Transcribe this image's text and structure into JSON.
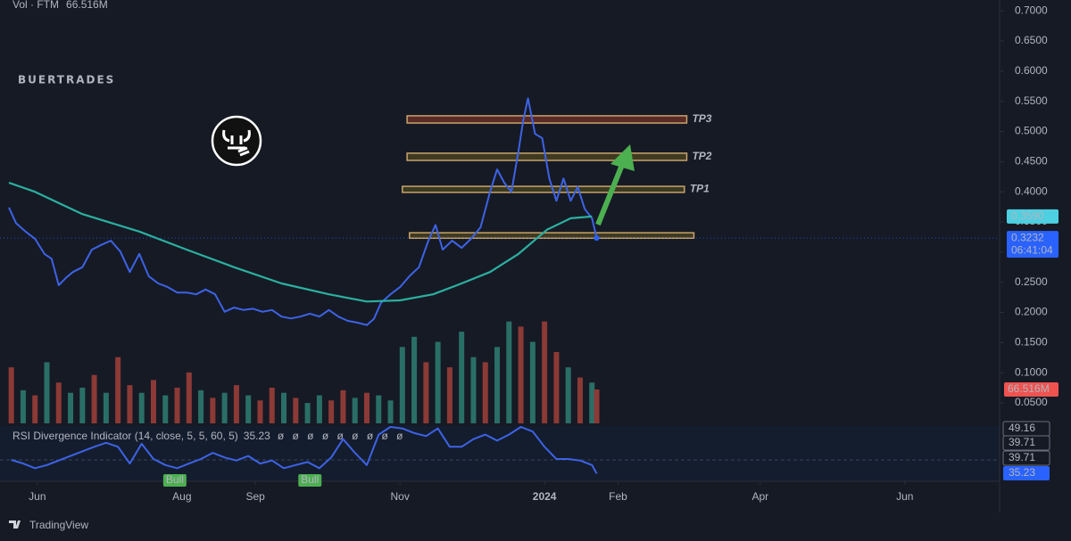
{
  "header": {
    "volume_title": "Vol · FTM"
  },
  "footer": {
    "brand": "TradingView"
  },
  "chart_data": [
    {
      "type": "line",
      "watermark": "BUERTRADES",
      "xlim": [
        139,
        557
      ],
      "xticks": [
        {
          "value": 151,
          "label": "Jun"
        },
        {
          "value": 212,
          "label": "Aug"
        },
        {
          "value": 243,
          "label": "Sep"
        },
        {
          "value": 304,
          "label": "Nov"
        },
        {
          "value": 365,
          "label": "2024"
        },
        {
          "value": 396,
          "label": "Feb"
        },
        {
          "value": 456,
          "label": "Apr"
        },
        {
          "value": 517,
          "label": "Jun"
        }
      ],
      "ylim": [
        0.016,
        0.718
      ],
      "yticks": [
        {
          "value": 0.05,
          "label": "0.0500"
        },
        {
          "value": 0.1,
          "label": "0.1000"
        },
        {
          "value": 0.15,
          "label": "0.1500"
        },
        {
          "value": 0.2,
          "label": "0.2000"
        },
        {
          "value": 0.25,
          "label": "0.2500"
        },
        {
          "value": 0.3,
          "label": "0.3000"
        },
        {
          "value": 0.35,
          "label": "0.3500"
        },
        {
          "value": 0.4,
          "label": "0.4000"
        },
        {
          "value": 0.45,
          "label": "0.4500"
        },
        {
          "value": 0.5,
          "label": "0.5000"
        },
        {
          "value": 0.55,
          "label": "0.5500"
        },
        {
          "value": 0.6,
          "label": "0.6000"
        },
        {
          "value": 0.65,
          "label": "0.6500"
        },
        {
          "value": 0.7,
          "label": "0.7000"
        }
      ],
      "series": [
        {
          "color": "#3d63e6",
          "x": [
            139,
            142,
            146,
            150,
            154,
            157,
            160,
            163,
            166,
            170,
            174,
            178,
            182,
            186,
            190,
            194,
            198,
            202,
            206,
            210,
            214,
            218,
            222,
            226,
            230,
            234,
            238,
            242,
            246,
            250,
            254,
            258,
            262,
            266,
            270,
            274,
            278,
            282,
            286,
            290,
            293,
            296,
            300,
            304,
            308,
            312,
            316,
            319,
            322,
            326,
            330,
            334,
            338,
            342,
            345,
            348,
            351,
            354,
            356,
            358,
            361,
            364,
            367,
            370,
            373,
            376,
            379,
            382,
            385,
            387
          ],
          "values": [
            0.374,
            0.348,
            0.334,
            0.322,
            0.297,
            0.289,
            0.245,
            0.257,
            0.267,
            0.275,
            0.304,
            0.312,
            0.319,
            0.301,
            0.267,
            0.297,
            0.26,
            0.248,
            0.242,
            0.233,
            0.233,
            0.23,
            0.238,
            0.23,
            0.201,
            0.208,
            0.204,
            0.206,
            0.201,
            0.204,
            0.193,
            0.19,
            0.193,
            0.198,
            0.193,
            0.204,
            0.193,
            0.186,
            0.183,
            0.179,
            0.189,
            0.216,
            0.23,
            0.242,
            0.26,
            0.275,
            0.319,
            0.345,
            0.304,
            0.319,
            0.307,
            0.322,
            0.341,
            0.4,
            0.437,
            0.415,
            0.4,
            0.467,
            0.518,
            0.555,
            0.496,
            0.489,
            0.422,
            0.385,
            0.422,
            0.385,
            0.408,
            0.371,
            0.356,
            0.3232
          ]
        },
        {
          "color": "#2bb0a0",
          "x": [
            139,
            150,
            170,
            194,
            214,
            234,
            254,
            274,
            290,
            304,
            318,
            330,
            342,
            354,
            366,
            376,
            385
          ],
          "values": [
            0.415,
            0.4,
            0.363,
            0.334,
            0.304,
            0.275,
            0.248,
            0.23,
            0.218,
            0.22,
            0.23,
            0.248,
            0.267,
            0.297,
            0.337,
            0.356,
            0.359
          ]
        }
      ],
      "price_labels": [
        {
          "value": 0.359,
          "label": "0.3590",
          "color": "#4dd0e1"
        },
        {
          "value": 0.3232,
          "label": "0.3232",
          "sub": "06:41:04",
          "color": "#2962ff"
        }
      ],
      "zones": [
        {
          "label": "TP3",
          "low": 0.514,
          "high": 0.526,
          "x_start": 307,
          "x_end": 425,
          "color": "#5a2a26"
        },
        {
          "label": "TP2",
          "low": 0.452,
          "high": 0.464,
          "x_start": 307,
          "x_end": 425,
          "color": "#3f3a22"
        },
        {
          "label": "TP1",
          "low": 0.399,
          "high": 0.409,
          "x_start": 305,
          "x_end": 424,
          "color": "#3a3a22"
        },
        {
          "low": 0.323,
          "high": 0.332,
          "x_start": 308,
          "x_end": 428,
          "color": "#3f3a22"
        }
      ]
    },
    {
      "type": "bar",
      "last_label": "66.516M",
      "ylim": [
        0,
        700
      ],
      "up_color": "#2a6f67",
      "down_color": "#8c3a36",
      "x": [
        140,
        145,
        150,
        155,
        160,
        165,
        170,
        175,
        180,
        185,
        190,
        195,
        200,
        205,
        210,
        215,
        220,
        225,
        230,
        235,
        240,
        245,
        250,
        255,
        260,
        265,
        270,
        275,
        280,
        285,
        290,
        295,
        300,
        305,
        310,
        315,
        320,
        325,
        330,
        335,
        340,
        345,
        350,
        355,
        360,
        365,
        370,
        375,
        380,
        385,
        387
      ],
      "values": [
        110,
        65,
        55,
        120,
        80,
        60,
        70,
        95,
        60,
        130,
        75,
        60,
        85,
        55,
        70,
        100,
        65,
        50,
        60,
        75,
        55,
        45,
        70,
        60,
        50,
        40,
        55,
        45,
        65,
        50,
        60,
        55,
        45,
        150,
        170,
        120,
        160,
        110,
        180,
        130,
        120,
        150,
        200,
        190,
        160,
        200,
        140,
        110,
        90,
        80,
        66.516
      ],
      "up": [
        false,
        true,
        false,
        true,
        false,
        true,
        true,
        false,
        true,
        false,
        false,
        true,
        false,
        true,
        false,
        false,
        true,
        false,
        true,
        false,
        true,
        false,
        false,
        true,
        false,
        true,
        true,
        false,
        false,
        true,
        false,
        true,
        true,
        true,
        true,
        false,
        true,
        false,
        true,
        true,
        false,
        true,
        true,
        false,
        true,
        false,
        false,
        true,
        false,
        true,
        false
      ]
    },
    {
      "type": "line",
      "title": "RSI Divergence Indicator (14, close, 5, 5, 60, 5)",
      "current": 35.23,
      "markers": "ø ø ø ø ø ø ø ø ø",
      "ylim": [
        32.7,
        50.8
      ],
      "color": "#3d63e6",
      "x": [
        140,
        145,
        150,
        155,
        160,
        165,
        170,
        175,
        180,
        185,
        190,
        195,
        200,
        205,
        210,
        215,
        220,
        225,
        230,
        235,
        240,
        245,
        250,
        255,
        260,
        265,
        270,
        275,
        280,
        285,
        290,
        295,
        300,
        305,
        310,
        315,
        320,
        325,
        330,
        335,
        340,
        345,
        350,
        355,
        360,
        365,
        370,
        375,
        380,
        385,
        387
      ],
      "values": [
        39.7,
        38.5,
        37.0,
        38.0,
        39.5,
        41.0,
        42.5,
        44.0,
        45.3,
        44.0,
        38.5,
        45.0,
        40.0,
        38.0,
        37.0,
        38.5,
        40.0,
        42.0,
        40.5,
        39.5,
        41.0,
        38.5,
        39.5,
        37.0,
        38.0,
        39.0,
        37.0,
        40.5,
        46.5,
        42.0,
        38.0,
        48.0,
        50.5,
        50.0,
        48.5,
        47.5,
        50.0,
        44.0,
        44.0,
        46.5,
        48.0,
        46.0,
        48.0,
        50.5,
        49.0,
        44.0,
        40.0,
        40.0,
        39.5,
        38.0,
        35.23
      ],
      "axis_labels": [
        49.16,
        39.71,
        39.71,
        35.23
      ],
      "level": 39.71,
      "annotations": [
        {
          "x": 209,
          "label": "Bull"
        },
        {
          "x": 266,
          "label": "Bull"
        }
      ]
    }
  ]
}
